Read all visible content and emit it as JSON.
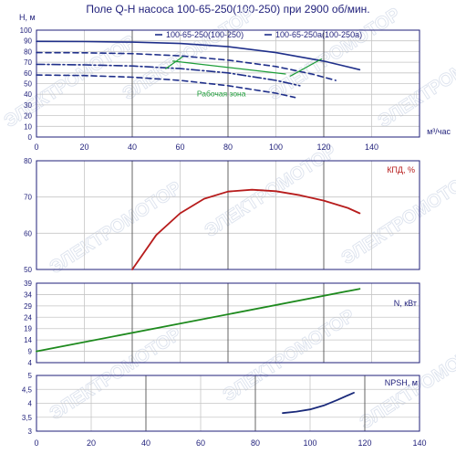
{
  "title": "Поле Q-H насоса 100-65-250(100-250) при 2900 об/мин.",
  "watermark": "ЭЛЕКТРОМОТОР",
  "colors": {
    "frame": "#1f1f7a",
    "grid": "#c6c6c6",
    "grid_major": "#555555",
    "h_series": "#1f2f8a",
    "efficiency": "#b71c1c",
    "power": "#1e8a1e",
    "npsh": "#1a2a7a",
    "work_zone": "#1e9e3a"
  },
  "chart_data": [
    {
      "id": "h",
      "type": "line",
      "xlabel": "м³/час",
      "ylabel": "H, м",
      "xlim": [
        0,
        160
      ],
      "ylim": [
        0,
        100
      ],
      "xticks": [
        0,
        20,
        40,
        60,
        80,
        100,
        120,
        140
      ],
      "yticks": [
        0,
        10,
        20,
        30,
        40,
        50,
        60,
        70,
        80,
        90,
        100
      ],
      "grid": true,
      "legend": "top-right",
      "annotation": "Рабочая зона",
      "series": [
        {
          "name": "100-65-250(100-250)",
          "style": "solid",
          "x": [
            0,
            20,
            40,
            60,
            80,
            100,
            120,
            135
          ],
          "y": [
            89.5,
            89.3,
            88.8,
            87.5,
            84.5,
            79,
            71,
            63
          ]
        },
        {
          "name": "",
          "style": "dashed",
          "x": [
            0,
            20,
            40,
            60,
            80,
            100,
            115,
            125
          ],
          "y": [
            79,
            78.8,
            78,
            76,
            72,
            66,
            59,
            53
          ]
        },
        {
          "name": "100-65-250a(100-250a)",
          "style": "dashdot",
          "x": [
            0,
            20,
            40,
            60,
            80,
            100,
            110
          ],
          "y": [
            68,
            67.5,
            66.5,
            64,
            60,
            53,
            48
          ]
        },
        {
          "name": "",
          "style": "dashed",
          "x": [
            0,
            20,
            40,
            60,
            80,
            100,
            108
          ],
          "y": [
            58,
            57.5,
            56,
            53,
            48,
            41,
            37
          ]
        }
      ],
      "work_zone": {
        "boundaries": [
          {
            "x": [
              54,
              61
            ],
            "y": [
              64,
              75
            ]
          },
          {
            "x": [
              106,
              119
            ],
            "y": [
              57,
              73
            ]
          }
        ],
        "pointer": {
          "x": [
            57,
            104
          ],
          "y": [
            71,
            59
          ]
        }
      }
    },
    {
      "id": "efficiency",
      "type": "line",
      "ylabel": "КПД, %",
      "xlim": [
        0,
        160
      ],
      "ylim": [
        50,
        80
      ],
      "yticks": [
        50,
        60,
        70,
        80
      ],
      "grid": true,
      "series": [
        {
          "name": "КПД, %",
          "x": [
            40,
            50,
            60,
            70,
            80,
            90,
            100,
            110,
            120,
            130,
            135
          ],
          "y": [
            50,
            59.5,
            65.5,
            69.5,
            71.5,
            72,
            71.6,
            70.5,
            69,
            67,
            65.5
          ]
        }
      ]
    },
    {
      "id": "power",
      "type": "line",
      "ylabel": "N, кВт",
      "xlim": [
        0,
        160
      ],
      "ylim": [
        4,
        39
      ],
      "yticks": [
        4,
        9,
        14,
        19,
        24,
        29,
        34,
        39
      ],
      "grid": true,
      "series": [
        {
          "name": "N, кВт",
          "x": [
            0,
            135
          ],
          "y": [
            9,
            36.5
          ]
        }
      ]
    },
    {
      "id": "npsh",
      "type": "line",
      "ylabel": "NPSH, м",
      "xlabel": "",
      "xlim": [
        0,
        140
      ],
      "ylim": [
        3,
        5
      ],
      "xticks": [
        0,
        20,
        40,
        60,
        80,
        100,
        120,
        140
      ],
      "yticks": [
        3,
        3.5,
        4,
        4.5,
        5
      ],
      "ytick_labels": [
        "3",
        "3,5",
        "4",
        "4,5",
        "5"
      ],
      "grid": true,
      "series": [
        {
          "name": "NPSH, м",
          "x": [
            90,
            95,
            100,
            105,
            110,
            116
          ],
          "y": [
            3.65,
            3.7,
            3.78,
            3.92,
            4.12,
            4.38
          ]
        }
      ]
    }
  ]
}
